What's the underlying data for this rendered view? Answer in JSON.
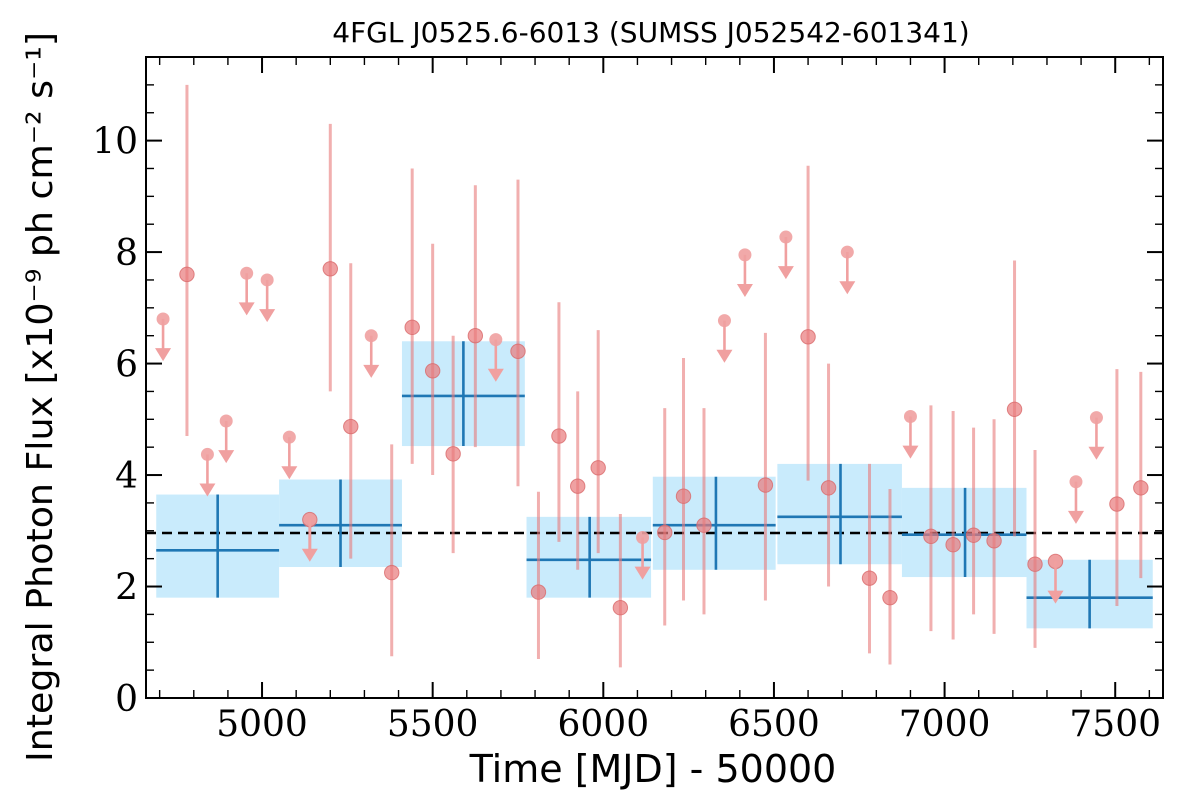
{
  "chart_data": {
    "type": "scatter",
    "title": "4FGL J0525.6-6013 (SUMSS J052542-601341)",
    "xlabel": "Time [MJD] - 50000",
    "ylabel": "Integral Photon Flux [x10⁻⁹ ph cm⁻² s⁻¹]",
    "xlim": [
      4660,
      7640
    ],
    "ylim": [
      0,
      11.5
    ],
    "x_ticks": [
      5000,
      5500,
      6000,
      6500,
      7000,
      7500
    ],
    "y_ticks": [
      0,
      2,
      4,
      6,
      8,
      10
    ],
    "mean_flux": 2.96,
    "colors": {
      "detections": "#e8797a",
      "upper_limits": "#f0a0a0",
      "yearly_bins": "#1f77b4",
      "yearly_band": "#c9ebfc",
      "mean_line": "#000000"
    },
    "series": [
      {
        "kind": "monthly_detections",
        "points": [
          {
            "x": 4780,
            "y": 7.6,
            "ylo": 4.7,
            "yhi": 11.0
          },
          {
            "x": 5200,
            "y": 7.7,
            "ylo": 5.5,
            "yhi": 10.3
          },
          {
            "x": 5140,
            "y": 3.2,
            "ylo": 2.5,
            "yhi": 3.2
          },
          {
            "x": 5260,
            "y": 4.87,
            "ylo": 2.5,
            "yhi": 7.8
          },
          {
            "x": 5380,
            "y": 2.25,
            "ylo": 0.75,
            "yhi": 4.55
          },
          {
            "x": 5440,
            "y": 6.65,
            "ylo": 4.2,
            "yhi": 9.5
          },
          {
            "x": 5500,
            "y": 5.87,
            "ylo": 4.0,
            "yhi": 8.15
          },
          {
            "x": 5560,
            "y": 4.38,
            "ylo": 2.6,
            "yhi": 6.5
          },
          {
            "x": 5625,
            "y": 6.5,
            "ylo": 4.5,
            "yhi": 9.2
          },
          {
            "x": 5750,
            "y": 6.22,
            "ylo": 3.8,
            "yhi": 9.3
          },
          {
            "x": 5810,
            "y": 1.9,
            "ylo": 0.7,
            "yhi": 3.7
          },
          {
            "x": 5870,
            "y": 4.7,
            "ylo": 2.8,
            "yhi": 7.1
          },
          {
            "x": 5925,
            "y": 3.8,
            "ylo": 2.3,
            "yhi": 5.5
          },
          {
            "x": 5985,
            "y": 4.13,
            "ylo": 2.6,
            "yhi": 6.6
          },
          {
            "x": 6050,
            "y": 1.62,
            "ylo": 0.55,
            "yhi": 3.3
          },
          {
            "x": 6180,
            "y": 2.97,
            "ylo": 1.3,
            "yhi": 5.2
          },
          {
            "x": 6235,
            "y": 3.62,
            "ylo": 1.75,
            "yhi": 6.1
          },
          {
            "x": 6295,
            "y": 3.1,
            "ylo": 1.5,
            "yhi": 5.2
          },
          {
            "x": 6475,
            "y": 3.82,
            "ylo": 1.75,
            "yhi": 6.55
          },
          {
            "x": 6600,
            "y": 6.48,
            "ylo": 3.9,
            "yhi": 9.55
          },
          {
            "x": 6660,
            "y": 3.77,
            "ylo": 2.0,
            "yhi": 6.0
          },
          {
            "x": 6780,
            "y": 2.15,
            "ylo": 0.8,
            "yhi": 4.2
          },
          {
            "x": 6840,
            "y": 1.8,
            "ylo": 0.6,
            "yhi": 3.75
          },
          {
            "x": 6960,
            "y": 2.9,
            "ylo": 1.2,
            "yhi": 5.25
          },
          {
            "x": 7025,
            "y": 2.75,
            "ylo": 1.05,
            "yhi": 5.15
          },
          {
            "x": 7085,
            "y": 2.92,
            "ylo": 1.5,
            "yhi": 4.85
          },
          {
            "x": 7145,
            "y": 2.82,
            "ylo": 1.15,
            "yhi": 5.0
          },
          {
            "x": 7205,
            "y": 5.18,
            "ylo": 2.9,
            "yhi": 7.85
          },
          {
            "x": 7265,
            "y": 2.4,
            "ylo": 0.9,
            "yhi": 4.45
          },
          {
            "x": 7325,
            "y": 2.45,
            "ylo": 2.3,
            "yhi": 2.45
          },
          {
            "x": 7505,
            "y": 3.48,
            "ylo": 1.65,
            "yhi": 5.9
          },
          {
            "x": 7575,
            "y": 3.77,
            "ylo": 2.15,
            "yhi": 5.85
          }
        ]
      },
      {
        "kind": "monthly_upper_limits",
        "points": [
          {
            "x": 4710,
            "y": 6.8
          },
          {
            "x": 4840,
            "y": 4.37
          },
          {
            "x": 4895,
            "y": 4.97
          },
          {
            "x": 4955,
            "y": 7.62
          },
          {
            "x": 5015,
            "y": 7.5
          },
          {
            "x": 5080,
            "y": 4.68
          },
          {
            "x": 5140,
            "y": 3.2
          },
          {
            "x": 5320,
            "y": 6.5
          },
          {
            "x": 5685,
            "y": 6.43
          },
          {
            "x": 6115,
            "y": 2.88
          },
          {
            "x": 6355,
            "y": 6.77
          },
          {
            "x": 6415,
            "y": 7.95
          },
          {
            "x": 6535,
            "y": 8.27
          },
          {
            "x": 6715,
            "y": 8.0
          },
          {
            "x": 6900,
            "y": 5.05
          },
          {
            "x": 7325,
            "y": 2.45
          },
          {
            "x": 7385,
            "y": 3.88
          },
          {
            "x": 7445,
            "y": 5.03
          }
        ]
      },
      {
        "kind": "yearly_bins",
        "points": [
          {
            "x": 4870,
            "xlo": 4690,
            "xhi": 5050,
            "y": 2.65,
            "ylo": 1.8,
            "yhi": 3.65
          },
          {
            "x": 5230,
            "xlo": 5050,
            "xhi": 5410,
            "y": 3.1,
            "ylo": 2.35,
            "yhi": 3.92
          },
          {
            "x": 5590,
            "xlo": 5410,
            "xhi": 5770,
            "y": 5.42,
            "ylo": 4.52,
            "yhi": 6.4
          },
          {
            "x": 5960,
            "xlo": 5775,
            "xhi": 6140,
            "y": 2.48,
            "ylo": 1.8,
            "yhi": 3.25
          },
          {
            "x": 6330,
            "xlo": 6145,
            "xhi": 6505,
            "y": 3.1,
            "ylo": 2.3,
            "yhi": 3.97
          },
          {
            "x": 6695,
            "xlo": 6510,
            "xhi": 6875,
            "y": 3.25,
            "ylo": 2.4,
            "yhi": 4.2
          },
          {
            "x": 7060,
            "xlo": 6875,
            "xhi": 7240,
            "y": 2.93,
            "ylo": 2.17,
            "yhi": 3.77
          },
          {
            "x": 7425,
            "xlo": 7240,
            "xhi": 7610,
            "y": 1.8,
            "ylo": 1.25,
            "yhi": 2.48
          }
        ]
      }
    ]
  }
}
